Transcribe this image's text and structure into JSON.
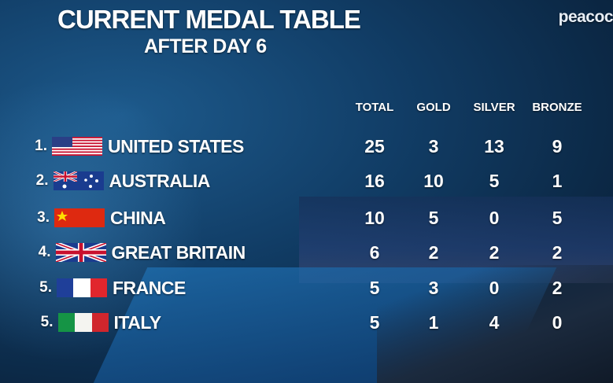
{
  "header": {
    "title": "CURRENT MEDAL TABLE",
    "subtitle": "AFTER DAY 6",
    "logo": "peacoc"
  },
  "table": {
    "columns": [
      "TOTAL",
      "GOLD",
      "SILVER",
      "BRONZE"
    ],
    "rows": [
      {
        "rank": "1.",
        "country": "UNITED STATES",
        "medals": [
          25,
          3,
          13,
          9
        ]
      },
      {
        "rank": "2.",
        "country": "AUSTRALIA",
        "medals": [
          16,
          10,
          5,
          1
        ]
      },
      {
        "rank": "3.",
        "country": "CHINA",
        "medals": [
          10,
          5,
          0,
          5
        ]
      },
      {
        "rank": "4.",
        "country": "GREAT BRITAIN",
        "medals": [
          6,
          2,
          2,
          2
        ]
      },
      {
        "rank": "5.",
        "country": "FRANCE",
        "medals": [
          5,
          3,
          0,
          2
        ]
      },
      {
        "rank": "5.",
        "country": "ITALY",
        "medals": [
          5,
          1,
          4,
          0
        ]
      }
    ]
  }
}
